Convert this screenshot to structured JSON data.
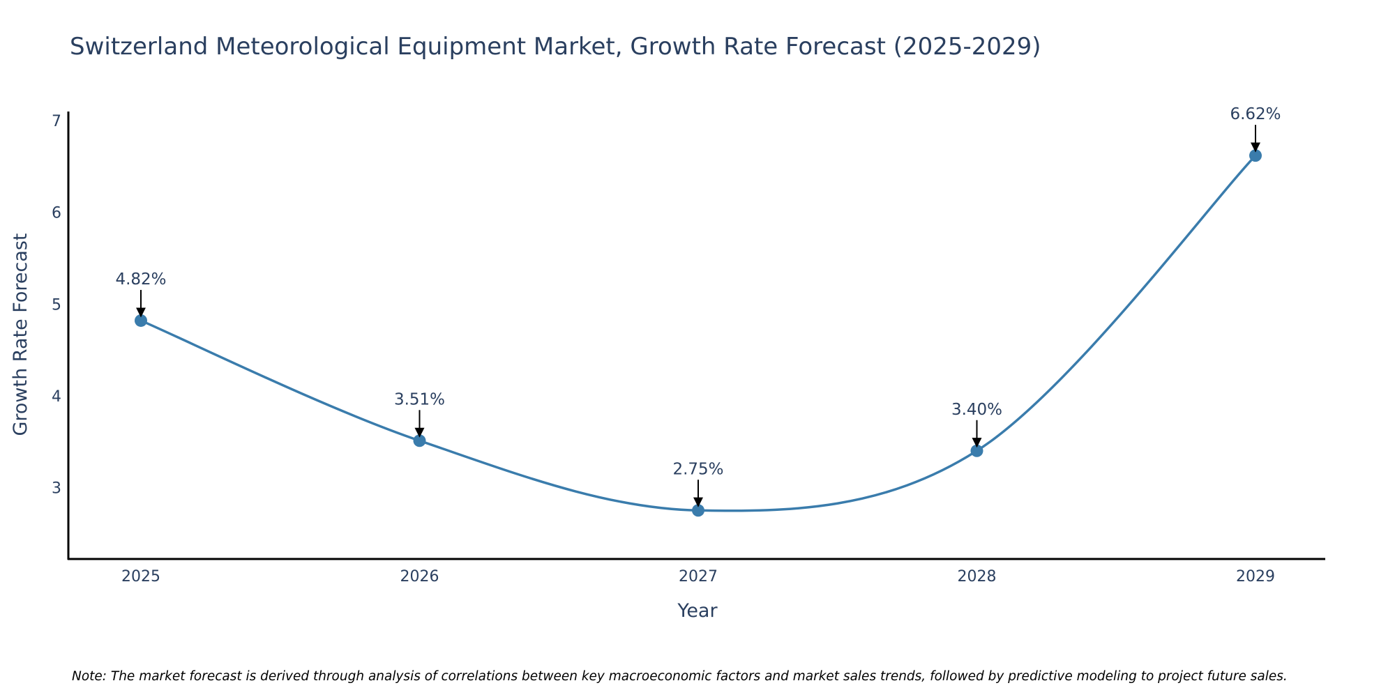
{
  "chart_data": {
    "type": "line",
    "title": "Switzerland Meteorological Equipment Market, Growth Rate Forecast (2025-2029)",
    "xlabel": "Year",
    "ylabel": "Growth Rate Forecast",
    "categories": [
      "2025",
      "2026",
      "2027",
      "2028",
      "2029"
    ],
    "values": [
      4.82,
      3.51,
      2.75,
      3.4,
      6.62
    ],
    "labels": [
      "4.82%",
      "3.51%",
      "2.75%",
      "3.40%",
      "6.62%"
    ],
    "yticks": [
      3,
      4,
      5,
      6,
      7
    ],
    "ylim": [
      2.22,
      7.1
    ],
    "line_shape": "spline",
    "grid": false,
    "colors": {
      "line": "#3a7cac",
      "marker": "#3a7cac",
      "arrow": "#000000",
      "text": "#2a3f5f",
      "axis": "#000000"
    },
    "note": "Note: The market forecast is derived through analysis of correlations between key macroeconomic factors and market sales trends, followed by predictive modeling to project future sales."
  }
}
